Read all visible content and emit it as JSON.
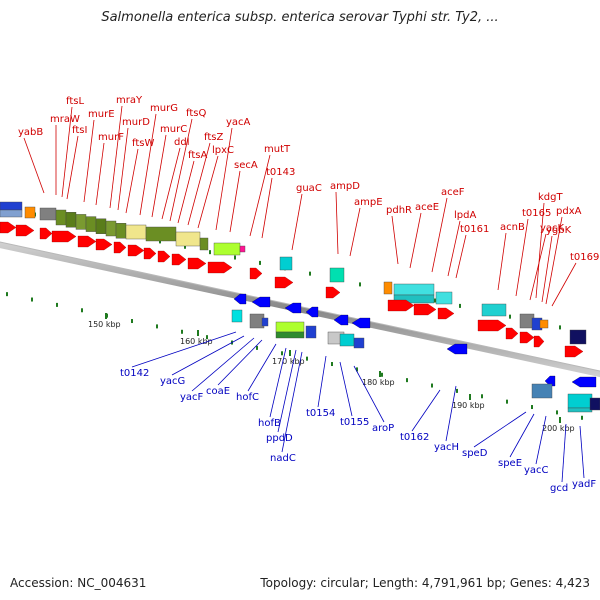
{
  "title": "Salmonella enterica subsp. enterica serovar Typhi str. Ty2, ...",
  "footer": {
    "accession": "Accession: NC_004631",
    "topology": "Topology: circular; Length: 4,791,961 bp; Genes: 4,423"
  },
  "colors": {
    "forward_label": "#d00000",
    "reverse_label": "#0000c0",
    "backbone": "#808080",
    "tick": "#1f7a1f"
  },
  "scale_labels": [
    "150 kbp",
    "160 kbp",
    "170 kbp",
    "180 kbp",
    "190 kbp",
    "200 kbp"
  ],
  "forward_genes": [
    "yabB",
    "mraW",
    "ftsL",
    "ftsI",
    "murE",
    "murF",
    "mraY",
    "murD",
    "ftsW",
    "murG",
    "murC",
    "ddl",
    "ftsQ",
    "ftsA",
    "ftsZ",
    "lpxC",
    "yacA",
    "secA",
    "mutT",
    "t0143",
    "guaC",
    "ampD",
    "ampE",
    "pdhR",
    "aceE",
    "aceF",
    "lpdA",
    "t0161",
    "acnB",
    "t0165",
    "yacK",
    "kdgT",
    "ygbK",
    "pdxA",
    "t0169"
  ],
  "reverse_genes": [
    "t0142",
    "yacG",
    "yacF",
    "coaE",
    "hofC",
    "hofB",
    "ppdD",
    "nadC",
    "t0154",
    "t0155",
    "aroP",
    "t0162",
    "yacH",
    "speD",
    "speE",
    "yacC",
    "gcd",
    "yadF"
  ]
}
